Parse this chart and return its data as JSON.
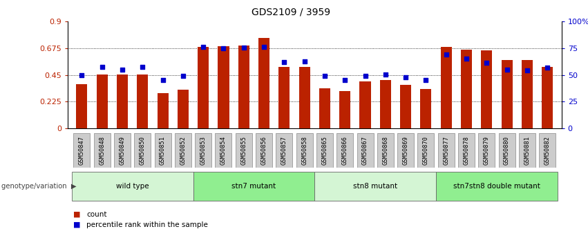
{
  "title": "GDS2109 / 3959",
  "samples": [
    "GSM50847",
    "GSM50848",
    "GSM50849",
    "GSM50850",
    "GSM50851",
    "GSM50852",
    "GSM50853",
    "GSM50854",
    "GSM50855",
    "GSM50856",
    "GSM50857",
    "GSM50858",
    "GSM50865",
    "GSM50866",
    "GSM50867",
    "GSM50868",
    "GSM50869",
    "GSM50870",
    "GSM50877",
    "GSM50878",
    "GSM50879",
    "GSM50880",
    "GSM50881",
    "GSM50882"
  ],
  "bar_values": [
    0.375,
    0.455,
    0.455,
    0.455,
    0.295,
    0.325,
    0.685,
    0.69,
    0.695,
    0.76,
    0.52,
    0.52,
    0.34,
    0.315,
    0.395,
    0.41,
    0.365,
    0.335,
    0.685,
    0.66,
    0.655,
    0.575,
    0.575,
    0.52
  ],
  "pct_values": [
    0.45,
    0.515,
    0.495,
    0.515,
    0.41,
    0.44,
    0.685,
    0.675,
    0.68,
    0.685,
    0.56,
    0.565,
    0.44,
    0.41,
    0.44,
    0.455,
    0.43,
    0.41,
    0.62,
    0.59,
    0.55,
    0.495,
    0.49,
    0.51
  ],
  "groups": [
    {
      "label": "wild type",
      "start": 0,
      "end": 6,
      "color": "#d4f5d4"
    },
    {
      "label": "stn7 mutant",
      "start": 6,
      "end": 12,
      "color": "#90ee90"
    },
    {
      "label": "stn8 mutant",
      "start": 12,
      "end": 18,
      "color": "#d4f5d4"
    },
    {
      "label": "stn7stn8 double mutant",
      "start": 18,
      "end": 24,
      "color": "#90ee90"
    }
  ],
  "group_label": "genotype/variation",
  "bar_color": "#bb2200",
  "pct_color": "#0000cc",
  "ylim_left": [
    0,
    0.9
  ],
  "ylim_right": [
    0,
    100
  ],
  "yticks_left": [
    0,
    0.225,
    0.45,
    0.675,
    0.9
  ],
  "ytick_labels_left": [
    "0",
    "0.225",
    "0.45",
    "0.675",
    "0.9"
  ],
  "yticks_right": [
    0,
    25,
    50,
    75,
    100
  ],
  "ytick_labels_right": [
    "0",
    "25",
    "50",
    "75",
    "100%"
  ],
  "grid_values": [
    0.225,
    0.45,
    0.675
  ],
  "legend_count_label": "count",
  "legend_pct_label": "percentile rank within the sample",
  "bar_width": 0.55,
  "xtick_bg": "#cccccc",
  "spine_color": "#000000"
}
